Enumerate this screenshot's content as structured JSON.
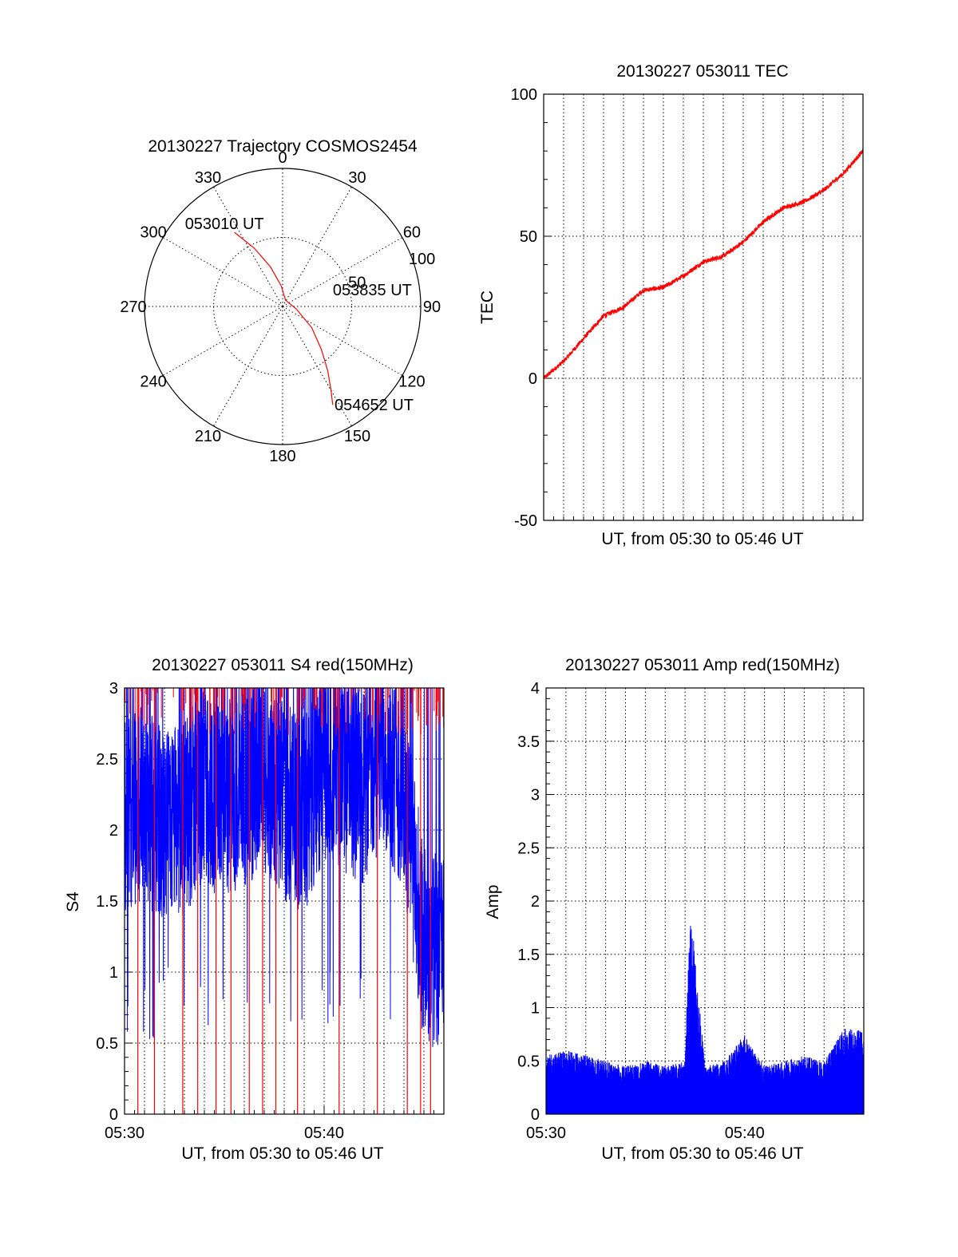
{
  "colors": {
    "red": "#ff0000",
    "blue": "#0000ff",
    "axis": "#000000"
  },
  "chart_data": [
    {
      "id": "trajectory",
      "type": "polar",
      "title": "20130227 Trajectory COSMOS2454",
      "angle_labels": [
        "0",
        "30",
        "60",
        "90",
        "120",
        "150",
        "180",
        "210",
        "240",
        "270",
        "300",
        "330"
      ],
      "radial_ticks": [
        {
          "value": 50,
          "label": "50"
        },
        {
          "value": 100,
          "label": "100"
        }
      ],
      "rlim": [
        0,
        100
      ],
      "series": [
        {
          "color": "#ff0000",
          "points": [
            [
              327,
              64
            ],
            [
              334,
              47
            ],
            [
              343,
              30
            ],
            [
              356,
              15
            ],
            [
              25,
              5
            ],
            [
              100,
              10
            ],
            [
              126,
              26
            ],
            [
              138,
              42
            ],
            [
              145,
              57
            ],
            [
              150,
              70
            ],
            [
              153,
              80
            ]
          ]
        }
      ],
      "annotations": [
        {
          "label": "053010 UT",
          "azimuth": 327,
          "elevation": 64
        },
        {
          "label": "053835 UT",
          "azimuth": 83,
          "elevation": 18
        },
        {
          "label": "054652 UT",
          "azimuth": 152,
          "elevation": 80
        }
      ]
    },
    {
      "id": "tec",
      "type": "line",
      "title": "20130227 053011 TEC",
      "xlabel": "UT, from 05:30 to 05:46 UT",
      "ylabel": "TEC",
      "xlim": [
        "05:30",
        "05:46"
      ],
      "ylim": [
        -50,
        100
      ],
      "yticks": [
        -50,
        0,
        50,
        100
      ],
      "grid": true,
      "series": [
        {
          "color": "#ff0000",
          "x": [
            "05:30:00",
            "05:31:00",
            "05:32:00",
            "05:33:00",
            "05:34:00",
            "05:35:00",
            "05:36:00",
            "05:37:00",
            "05:38:00",
            "05:39:00",
            "05:40:00",
            "05:41:00",
            "05:42:00",
            "05:43:00",
            "05:44:00",
            "05:45:00",
            "05:46:00"
          ],
          "y": [
            0,
            6,
            14,
            22,
            25,
            31,
            32,
            36,
            41,
            43,
            48,
            55,
            60,
            62,
            66,
            72,
            80
          ]
        }
      ]
    },
    {
      "id": "s4",
      "type": "line",
      "title": "20130227 053011 S4 red(150MHz)",
      "xlabel": "UT, from 05:30 to 05:46 UT",
      "ylabel": "S4",
      "xlim": [
        "05:30",
        "05:46"
      ],
      "xticks": [
        "05:30",
        "05:40"
      ],
      "ylim": [
        0,
        3
      ],
      "yticks": [
        "0",
        "0.5",
        "1",
        "1.5",
        "2",
        "2.5",
        "3"
      ],
      "grid": true,
      "series": [
        {
          "color": "#0000ff",
          "x": [
            "05:30:00",
            "05:31:00",
            "05:32:00",
            "05:33:00",
            "05:34:00",
            "05:35:00",
            "05:36:00",
            "05:37:00",
            "05:38:00",
            "05:39:00",
            "05:40:00",
            "05:41:00",
            "05:42:00",
            "05:43:00",
            "05:44:00",
            "05:45:00",
            "05:46:00"
          ],
          "y": [
            2.1,
            2.2,
            2.0,
            2.1,
            2.3,
            2.2,
            2.3,
            2.4,
            2.2,
            2.1,
            2.5,
            2.4,
            2.3,
            2.6,
            2.2,
            1.2,
            1.1
          ]
        }
      ],
      "dropouts": {
        "color": "#ff0000",
        "x": [
          "05:30:40",
          "05:31:30",
          "05:32:55",
          "05:33:40",
          "05:34:35",
          "05:35:20",
          "05:36:15",
          "05:36:55",
          "05:37:35",
          "05:38:40",
          "05:40:45",
          "05:42:40",
          "05:44:10",
          "05:44:50",
          "05:45:20"
        ]
      }
    },
    {
      "id": "amp",
      "type": "line",
      "title": "20130227 053011 Amp red(150MHz)",
      "xlabel": "UT, from 05:30 to 05:46 UT",
      "ylabel": "Amp",
      "xlim": [
        "05:30",
        "05:46"
      ],
      "xticks": [
        "05:30",
        "05:40"
      ],
      "ylim": [
        0,
        4
      ],
      "yticks": [
        "0",
        "0.5",
        "1",
        "1.5",
        "2",
        "2.5",
        "3",
        "3.5",
        "4"
      ],
      "grid": true,
      "series": [
        {
          "color": "#0000ff",
          "x": [
            "05:30:00",
            "05:31:00",
            "05:32:00",
            "05:33:00",
            "05:34:00",
            "05:35:00",
            "05:36:00",
            "05:37:00",
            "05:37:15",
            "05:38:00",
            "05:39:00",
            "05:40:00",
            "05:41:00",
            "05:42:00",
            "05:43:00",
            "05:44:00",
            "05:45:00",
            "05:46:00"
          ],
          "y": [
            0.55,
            0.6,
            0.55,
            0.5,
            0.45,
            0.5,
            0.45,
            0.5,
            2.0,
            0.45,
            0.5,
            0.75,
            0.45,
            0.5,
            0.55,
            0.5,
            0.8,
            0.8
          ]
        }
      ]
    }
  ]
}
